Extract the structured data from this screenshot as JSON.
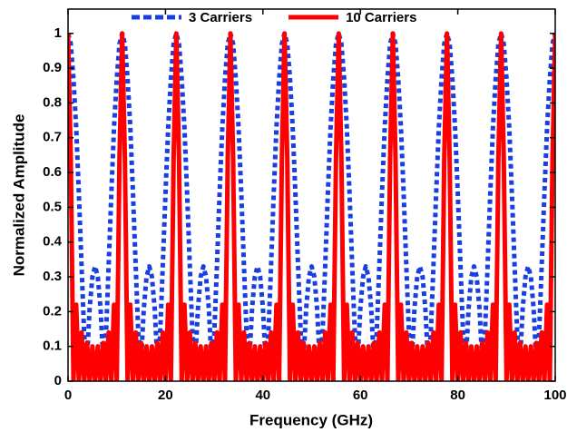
{
  "chart_data": {
    "type": "line",
    "xlabel": "Frequency (GHz)",
    "ylabel": "Normalized Amplitude",
    "xlim": [
      0,
      100
    ],
    "xticks": [
      0,
      20,
      40,
      60,
      80,
      100
    ],
    "ylim": [
      0,
      1.07
    ],
    "yticks": [
      0,
      0.1,
      0.2,
      0.3,
      0.4,
      0.5,
      0.6,
      0.7,
      0.8,
      0.9,
      1
    ],
    "legend": "upper center",
    "grid": false,
    "x": [
      0,
      0.56,
      1.11,
      1.67,
      2.22,
      2.78,
      3.33,
      3.89,
      4.44,
      5,
      5.56,
      6.11,
      6.67,
      7.22,
      7.78,
      8.33,
      8.89,
      9.44,
      10,
      10.56,
      11.11,
      11.67,
      12.22,
      12.78,
      13.33,
      13.89,
      14.44,
      15,
      15.56,
      16.11,
      16.67,
      17.22,
      17.78,
      18.33,
      18.89,
      19.44,
      20,
      20.56,
      21.11,
      21.67,
      22.22,
      22.78,
      23.33,
      23.89,
      24.44,
      25,
      25.56,
      26.11,
      26.67,
      27.22,
      27.78,
      28.33,
      28.89,
      29.44,
      30,
      30.56,
      31.11,
      31.67,
      32.22,
      32.78,
      33.33,
      33.89,
      34.44,
      35,
      35.56,
      36.11,
      36.67,
      37.22,
      37.78,
      38.33,
      38.89,
      39.44,
      40,
      40.56,
      41.11,
      41.67,
      42.22,
      42.78,
      43.33,
      43.89,
      44.44,
      45,
      45.56,
      46.11,
      46.67,
      47.22,
      47.78,
      48.33,
      48.89,
      49.44,
      50,
      50.56,
      51.11,
      51.67,
      52.22,
      52.78,
      53.33,
      53.89,
      54.44,
      55,
      55.56,
      56.11,
      56.67,
      57.22,
      57.78,
      58.33,
      58.89,
      59.44,
      60,
      60.56,
      61.11,
      61.67,
      62.22,
      62.78,
      63.33,
      63.89,
      64.44,
      65,
      65.56,
      66.11,
      66.67,
      67.22,
      67.78,
      68.33,
      68.89,
      69.44,
      70,
      70.56,
      71.11,
      71.67,
      72.22,
      72.78,
      73.33,
      73.89,
      74.44,
      75,
      75.56,
      76.11,
      76.67,
      77.22,
      77.78,
      78.33,
      78.89,
      79.44,
      80,
      80.56,
      81.11,
      81.67,
      82.22,
      82.78,
      83.33,
      83.89,
      84.44,
      85,
      85.56,
      86.11,
      86.67,
      87.22,
      87.78,
      88.33,
      88.89,
      89.44,
      90,
      90.56,
      91.11,
      91.67,
      92.22,
      92.78,
      93.33,
      93.89,
      94.44,
      95,
      95.56,
      96.11,
      96.67,
      97.22,
      97.78,
      98.33,
      98.89,
      99.44,
      100
    ],
    "series": [
      {
        "name": "3 Carriers",
        "color": "#1a3fe0",
        "linestyle": "dashed",
        "values": [
          1,
          0.97,
          0.87,
          0.73,
          0.54,
          0.33,
          0.13,
          0.06,
          0.21,
          0.3,
          0.33,
          0.3,
          0.21,
          0.06,
          0.13,
          0.33,
          0.54,
          0.73,
          0.87,
          0.97,
          1,
          0.97,
          0.87,
          0.73,
          0.54,
          0.33,
          0.13,
          0.06,
          0.21,
          0.3,
          0.33,
          0.3,
          0.21,
          0.06,
          0.13,
          0.33,
          0.54,
          0.73,
          0.87,
          0.97,
          1,
          0.97,
          0.87,
          0.73,
          0.54,
          0.33,
          0.13,
          0.06,
          0.21,
          0.3,
          0.33,
          0.3,
          0.21,
          0.06,
          0.13,
          0.33,
          0.54,
          0.73,
          0.87,
          0.97,
          1,
          0.97,
          0.87,
          0.73,
          0.54,
          0.33,
          0.13,
          0.06,
          0.21,
          0.3,
          0.33,
          0.3,
          0.21,
          0.06,
          0.13,
          0.33,
          0.54,
          0.73,
          0.87,
          0.97,
          1,
          0.97,
          0.87,
          0.73,
          0.54,
          0.33,
          0.13,
          0.06,
          0.21,
          0.3,
          0.33,
          0.3,
          0.21,
          0.06,
          0.13,
          0.33,
          0.54,
          0.73,
          0.87,
          0.97,
          1,
          0.97,
          0.87,
          0.73,
          0.54,
          0.33,
          0.13,
          0.06,
          0.21,
          0.3,
          0.33,
          0.3,
          0.21,
          0.06,
          0.13,
          0.33,
          0.54,
          0.73,
          0.87,
          0.97,
          1,
          0.97,
          0.87,
          0.73,
          0.54,
          0.33,
          0.13,
          0.06,
          0.21,
          0.3,
          0.33,
          0.3,
          0.21,
          0.06,
          0.13,
          0.33,
          0.54,
          0.73,
          0.87,
          0.97,
          1,
          0.97,
          0.87,
          0.73,
          0.54,
          0.33,
          0.13,
          0.06,
          0.21,
          0.3,
          0.33,
          0.3,
          0.21,
          0.06,
          0.13,
          0.33,
          0.54,
          0.73,
          0.87,
          0.97,
          1,
          0.97,
          0.87,
          0.73,
          0.54,
          0.33,
          0.13,
          0.06,
          0.21,
          0.3,
          0.33,
          0.3,
          0.21,
          0.06,
          0.13,
          0.33,
          0.54,
          0.73,
          0.87,
          0.97,
          1
        ]
      },
      {
        "name": "10 Carriers",
        "color": "#ff0000",
        "linestyle": "solid",
        "values": [
          1,
          0.64,
          0,
          0.22,
          0,
          0.14,
          0,
          0.11,
          0,
          0.1,
          0,
          0.1,
          0,
          0.11,
          0,
          0.14,
          0,
          0.22,
          0,
          0.64,
          1,
          0.64,
          0,
          0.22,
          0,
          0.14,
          0,
          0.11,
          0,
          0.1,
          0,
          0.1,
          0,
          0.11,
          0,
          0.14,
          0,
          0.22,
          0,
          0.64,
          1,
          0.64,
          0,
          0.22,
          0,
          0.14,
          0,
          0.11,
          0,
          0.1,
          0,
          0.1,
          0,
          0.11,
          0,
          0.14,
          0,
          0.22,
          0,
          0.64,
          1,
          0.64,
          0,
          0.22,
          0,
          0.14,
          0,
          0.11,
          0,
          0.1,
          0,
          0.1,
          0,
          0.11,
          0,
          0.14,
          0,
          0.22,
          0,
          0.64,
          1,
          0.64,
          0,
          0.22,
          0,
          0.14,
          0,
          0.11,
          0,
          0.1,
          0,
          0.1,
          0,
          0.11,
          0,
          0.14,
          0,
          0.22,
          0,
          0.64,
          1,
          0.64,
          0,
          0.22,
          0,
          0.14,
          0,
          0.11,
          0,
          0.1,
          0,
          0.1,
          0,
          0.11,
          0,
          0.14,
          0,
          0.22,
          0,
          0.64,
          1,
          0.64,
          0,
          0.22,
          0,
          0.14,
          0,
          0.11,
          0,
          0.1,
          0,
          0.1,
          0,
          0.11,
          0,
          0.14,
          0,
          0.22,
          0,
          0.64,
          1,
          0.64,
          0,
          0.22,
          0,
          0.14,
          0,
          0.11,
          0,
          0.1,
          0,
          0.1,
          0,
          0.11,
          0,
          0.14,
          0,
          0.22,
          0,
          0.64,
          1,
          0.64,
          0,
          0.22,
          0,
          0.14,
          0,
          0.11,
          0,
          0.1,
          0,
          0.1,
          0,
          0.11,
          0,
          0.14,
          0,
          0.22,
          0,
          0.64,
          1
        ]
      }
    ]
  }
}
